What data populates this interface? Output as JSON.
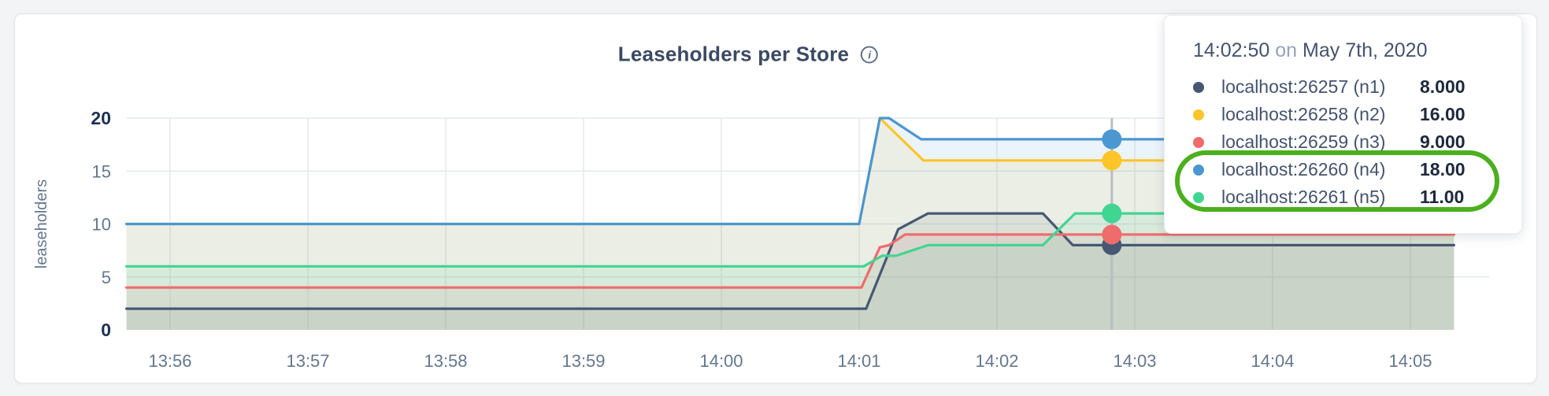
{
  "chart": {
    "title": "Leaseholders per Store",
    "info_glyph": "i"
  },
  "tooltip": {
    "time": "14:02:50",
    "connector": "on",
    "date": "May 7th, 2020",
    "rows": [
      {
        "label": "localhost:26257 (n1)",
        "value": "8.000",
        "color": "#475872"
      },
      {
        "label": "localhost:26258 (n2)",
        "value": "16.00",
        "color": "#fdc529"
      },
      {
        "label": "localhost:26259 (n3)",
        "value": "9.000",
        "color": "#ef6c6c"
      },
      {
        "label": "localhost:26260 (n4)",
        "value": "18.00",
        "color": "#4a97d2"
      },
      {
        "label": "localhost:26261 (n5)",
        "value": "11.00",
        "color": "#41d592"
      }
    ],
    "highlight": {
      "row_indexes": [
        3,
        4
      ],
      "color": "#4cb01e"
    }
  },
  "chart_data": {
    "type": "area",
    "title": "Leaseholders per Store",
    "xlabel": "",
    "ylabel": "leaseholders",
    "ylim": [
      0,
      20
    ],
    "y_ticks": [
      0,
      5,
      10,
      15,
      20
    ],
    "x_ticks": [
      "13:56",
      "13:57",
      "13:58",
      "13:59",
      "14:00",
      "14:01",
      "14:02",
      "14:03",
      "14:04",
      "14:05"
    ],
    "x_start": "13:55:41",
    "x_end": "14:05:19",
    "grid": true,
    "legend_position": "tooltip",
    "series": [
      {
        "name": "localhost:26257 (n1)",
        "color": "#475872",
        "points": [
          [
            "13:55:41",
            2
          ],
          [
            "14:01:03",
            2
          ],
          [
            "14:01:17",
            9.5
          ],
          [
            "14:01:30",
            11
          ],
          [
            "14:02:20",
            11
          ],
          [
            "14:02:33",
            8
          ],
          [
            "14:05:19",
            8
          ]
        ]
      },
      {
        "name": "localhost:26258 (n2)",
        "color": "#fdc529",
        "points": [
          [
            "13:55:41",
            10
          ],
          [
            "14:01:00",
            10
          ],
          [
            "14:01:09",
            20
          ],
          [
            "14:01:28",
            16
          ],
          [
            "14:05:19",
            16
          ]
        ]
      },
      {
        "name": "localhost:26259 (n3)",
        "color": "#ef6c6c",
        "points": [
          [
            "13:55:41",
            4
          ],
          [
            "14:01:01",
            4
          ],
          [
            "14:01:09",
            7.8
          ],
          [
            "14:01:13",
            8
          ],
          [
            "14:01:20",
            9
          ],
          [
            "14:05:19",
            9
          ]
        ]
      },
      {
        "name": "localhost:26260 (n4)",
        "color": "#4a97d2",
        "points": [
          [
            "13:55:41",
            10
          ],
          [
            "14:01:00",
            10
          ],
          [
            "14:01:09",
            20
          ],
          [
            "14:01:13",
            20
          ],
          [
            "14:01:27",
            18
          ],
          [
            "14:05:19",
            18
          ]
        ]
      },
      {
        "name": "localhost:26261 (n5)",
        "color": "#41d592",
        "points": [
          [
            "13:55:41",
            6
          ],
          [
            "14:01:02",
            6
          ],
          [
            "14:01:10",
            7
          ],
          [
            "14:01:16",
            7
          ],
          [
            "14:01:30",
            8
          ],
          [
            "14:02:20",
            8
          ],
          [
            "14:02:34",
            11
          ],
          [
            "14:05:19",
            11
          ]
        ]
      }
    ],
    "hover": {
      "time": "14:02:50",
      "values": [
        8,
        16,
        9,
        18,
        11
      ]
    }
  }
}
